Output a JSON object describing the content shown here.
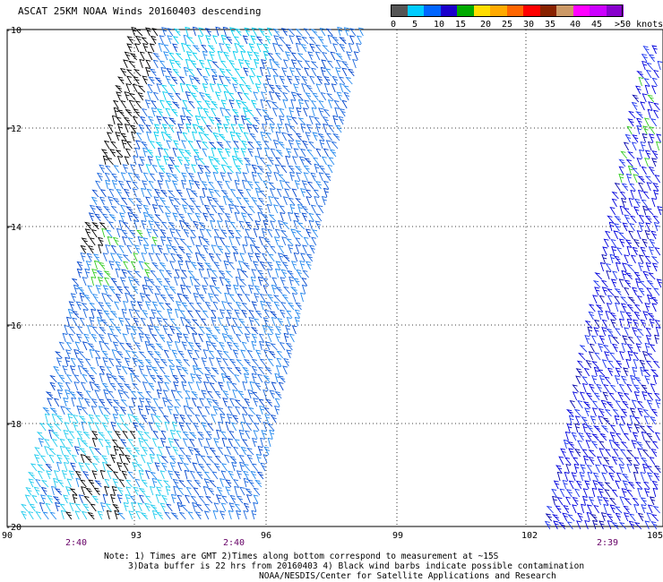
{
  "title": "ASCAT 25KM NOAA Winds 20160403 descending",
  "colorbar": {
    "colors": [
      "#555555",
      "#00ccff",
      "#0066ff",
      "#1a00cc",
      "#00aa00",
      "#ffdd00",
      "#ffaa00",
      "#ff6600",
      "#ff0000",
      "#882200",
      "#cc9966",
      "#ff00ff",
      "#cc00ff",
      "#8800cc"
    ],
    "labels": [
      "0",
      "5",
      "10",
      "15",
      "20",
      "25",
      "30",
      "35",
      "40",
      "45",
      ">50 knots"
    ]
  },
  "map": {
    "lat_labels": [
      "-10",
      "-12",
      "-14",
      "-16",
      "-18",
      "-20"
    ],
    "lon_labels": [
      "90",
      "93",
      "96",
      "99",
      "102",
      "105"
    ],
    "time_labels": [
      "2:40",
      "2:40",
      "2:39"
    ]
  },
  "notes": {
    "line1": "Note: 1) Times are GMT 2)Times along bottom correspond to measurement at ~15S",
    "line2": "3)Data buffer is 22 hrs from 20160403 4) Black wind barbs indicate possible contamination",
    "line3": "NOAA/NESDIS/Center for Satellite Applications and Research"
  }
}
